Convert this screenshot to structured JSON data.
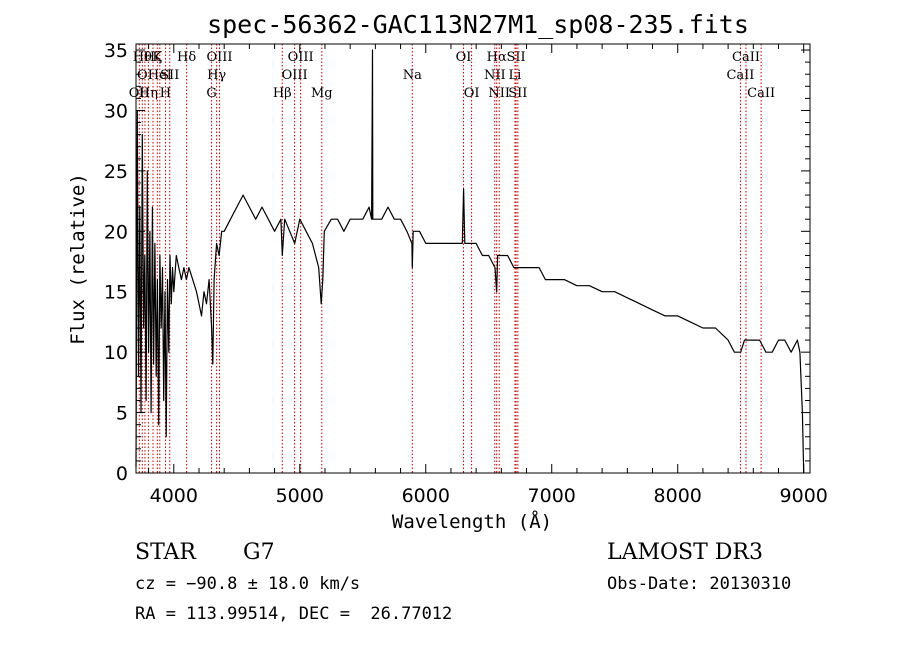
{
  "chart_data": {
    "type": "line",
    "title": "spec-56362-GAC113N27M1_sp08-235.fits",
    "xlabel": "Wavelength (Å)",
    "ylabel": "Flux (relative)",
    "xlim": [
      3700,
      9050
    ],
    "ylim": [
      0,
      35.5
    ],
    "xticks": [
      4000,
      5000,
      6000,
      7000,
      8000,
      9000
    ],
    "yticks": [
      0,
      5,
      10,
      15,
      20,
      25,
      30,
      35
    ],
    "grid": false,
    "legend": "none",
    "series": [
      {
        "name": "spectrum",
        "x": [
          3700,
          3710,
          3720,
          3730,
          3740,
          3750,
          3760,
          3770,
          3780,
          3790,
          3800,
          3810,
          3820,
          3830,
          3840,
          3850,
          3860,
          3870,
          3880,
          3890,
          3900,
          3910,
          3920,
          3930,
          3940,
          3950,
          3960,
          3970,
          3980,
          3990,
          4000,
          4020,
          4040,
          4060,
          4080,
          4100,
          4120,
          4150,
          4180,
          4200,
          4220,
          4240,
          4260,
          4280,
          4300,
          4310,
          4320,
          4340,
          4360,
          4380,
          4400,
          4450,
          4500,
          4550,
          4600,
          4650,
          4700,
          4750,
          4800,
          4850,
          4861,
          4880,
          4920,
          4960,
          5000,
          5050,
          5100,
          5150,
          5170,
          5183,
          5195,
          5250,
          5300,
          5350,
          5400,
          5450,
          5500,
          5550,
          5570,
          5577,
          5580,
          5600,
          5650,
          5700,
          5750,
          5800,
          5850,
          5890,
          5893,
          5900,
          5950,
          6000,
          6050,
          6100,
          6150,
          6200,
          6250,
          6290,
          6300,
          6310,
          6350,
          6400,
          6450,
          6500,
          6550,
          6563,
          6570,
          6600,
          6650,
          6700,
          6750,
          6800,
          6850,
          6900,
          6950,
          7000,
          7100,
          7200,
          7300,
          7400,
          7500,
          7600,
          7700,
          7800,
          7900,
          8000,
          8100,
          8200,
          8300,
          8400,
          8450,
          8500,
          8530,
          8560,
          8600,
          8650,
          8700,
          8750,
          8800,
          8850,
          8900,
          8950,
          8970,
          8990,
          9000
        ],
        "y": [
          0.5,
          30,
          8,
          22,
          5,
          28,
          12,
          18,
          6,
          25,
          10,
          20,
          5,
          22,
          9,
          19,
          8,
          16,
          4,
          18,
          12,
          17,
          6,
          15,
          3,
          16,
          10,
          18,
          14,
          17,
          15,
          18,
          17,
          16,
          17,
          16,
          17,
          16,
          15,
          14,
          13,
          15,
          14,
          16,
          12,
          9,
          16,
          19,
          18,
          20,
          20,
          21,
          22,
          23,
          22,
          21,
          22,
          21,
          20,
          21,
          18,
          21,
          20,
          19,
          21,
          20,
          19,
          17,
          14,
          16,
          20,
          21,
          21,
          20,
          21,
          21,
          21,
          22,
          21,
          35,
          21,
          21,
          21,
          22,
          21,
          21,
          20,
          19,
          17,
          20,
          20,
          19,
          19,
          19,
          19,
          19,
          19,
          19,
          23.5,
          19,
          19,
          19,
          18,
          18,
          17,
          15,
          18,
          18,
          18,
          17,
          17,
          17,
          17,
          17,
          16,
          16,
          16,
          15.5,
          15.5,
          15,
          15,
          14.5,
          14,
          13.5,
          13,
          13,
          12.5,
          12,
          12,
          11,
          10,
          10,
          11,
          11,
          11,
          11,
          10,
          10,
          11,
          11,
          10,
          11,
          10,
          5,
          0
        ]
      }
    ],
    "lines": [
      {
        "wl": 3726,
        "label": "OII",
        "row": 3
      },
      {
        "wl": 3750,
        "label": "Hθ",
        "row": 1
      },
      {
        "wl": 3771,
        "label": "OI",
        "row": 2
      },
      {
        "wl": 3798,
        "label": "Hη",
        "row": 3
      },
      {
        "wl": 3835,
        "label": "Hζ",
        "row": 1
      },
      {
        "wl": 3869,
        "label": "K",
        "row": 1
      },
      {
        "wl": 3889,
        "label": "HeI",
        "row": 2
      },
      {
        "wl": 3934,
        "label": "H",
        "row": 3
      },
      {
        "wl": 3968,
        "label": "SII",
        "row": 2
      },
      {
        "wl": 4102,
        "label": "Hδ",
        "row": 1
      },
      {
        "wl": 4300,
        "label": "G",
        "row": 3
      },
      {
        "wl": 4340,
        "label": "Hγ",
        "row": 2
      },
      {
        "wl": 4363,
        "label": "OIII",
        "row": 1
      },
      {
        "wl": 4861,
        "label": "Hβ",
        "row": 3
      },
      {
        "wl": 4959,
        "label": "OIII",
        "row": 2
      },
      {
        "wl": 5007,
        "label": "OIII",
        "row": 1
      },
      {
        "wl": 5175,
        "label": "Mg",
        "row": 3
      },
      {
        "wl": 5893,
        "label": "Na",
        "row": 2
      },
      {
        "wl": 6300,
        "label": "OI",
        "row": 1
      },
      {
        "wl": 6364,
        "label": "OI",
        "row": 3
      },
      {
        "wl": 6548,
        "label": "NII",
        "row": 2
      },
      {
        "wl": 6563,
        "label": "Hα",
        "row": 1
      },
      {
        "wl": 6583,
        "label": "NII",
        "row": 3
      },
      {
        "wl": 6708,
        "label": "Li",
        "row": 2
      },
      {
        "wl": 6717,
        "label": "SII",
        "row": 1
      },
      {
        "wl": 6731,
        "label": "SII",
        "row": 3
      },
      {
        "wl": 8498,
        "label": "CaII",
        "row": 2
      },
      {
        "wl": 8542,
        "label": "CaII",
        "row": 1
      },
      {
        "wl": 8662,
        "label": "CaII",
        "row": 3
      }
    ]
  },
  "info": {
    "object_class": "STAR",
    "subclass": "G7",
    "survey": "LAMOST DR3",
    "redshift": "cz = −90.8 ± 18.0 km/s",
    "obs_date": "Obs-Date: 20130310",
    "coords": "RA = 113.99514, DEC =  26.77012"
  }
}
